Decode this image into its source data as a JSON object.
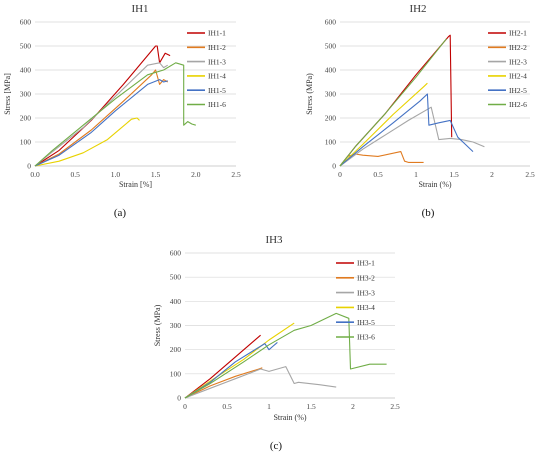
{
  "chart_data": [
    {
      "type": "line",
      "title": "IH1",
      "xlabel": "Strain [%]",
      "ylabel": "Stress [MPa]",
      "xlim": [
        0,
        2.5
      ],
      "ylim": [
        0,
        600
      ],
      "xticks": [
        "0.0",
        "0.5",
        "1.0",
        "1.5",
        "2.0",
        "2.5"
      ],
      "yticks": [
        "0",
        "100",
        "200",
        "300",
        "400",
        "500",
        "600"
      ],
      "grid": "horizontal",
      "legend": "right",
      "panel_label": "(a)",
      "series": [
        {
          "name": "IH1-1",
          "color": "#c00000",
          "x": [
            0,
            0.3,
            0.7,
            1.1,
            1.5,
            1.52,
            1.55,
            1.62,
            1.68
          ],
          "y": [
            0,
            65,
            190,
            340,
            500,
            500,
            430,
            470,
            460
          ]
        },
        {
          "name": "IH1-2",
          "color": "#e07b20",
          "x": [
            0,
            0.3,
            0.7,
            1.1,
            1.45,
            1.5,
            1.55,
            1.6,
            1.65
          ],
          "y": [
            0,
            50,
            150,
            270,
            380,
            400,
            340,
            360,
            350
          ]
        },
        {
          "name": "IH1-3",
          "color": "#a6a6a6",
          "x": [
            0,
            0.2,
            0.6,
            1.0,
            1.4,
            1.55,
            1.6,
            1.65
          ],
          "y": [
            0,
            55,
            160,
            290,
            420,
            430,
            410,
            420
          ]
        },
        {
          "name": "IH1-4",
          "color": "#e8d200",
          "x": [
            0,
            0.3,
            0.6,
            0.9,
            1.2,
            1.27,
            1.3
          ],
          "y": [
            0,
            20,
            55,
            110,
            195,
            200,
            190
          ]
        },
        {
          "name": "IH1-5",
          "color": "#4472c4",
          "x": [
            0,
            0.3,
            0.7,
            1.0,
            1.4,
            1.55,
            1.6,
            1.65
          ],
          "y": [
            0,
            45,
            140,
            230,
            340,
            360,
            350,
            355
          ]
        },
        {
          "name": "IH1-6",
          "color": "#70ad47",
          "x": [
            0,
            0.2,
            0.6,
            1.0,
            1.4,
            1.6,
            1.75,
            1.85,
            1.85,
            1.9,
            1.95,
            2.0
          ],
          "y": [
            0,
            60,
            170,
            280,
            380,
            400,
            430,
            420,
            170,
            185,
            175,
            170
          ]
        }
      ]
    },
    {
      "type": "line",
      "title": "IH2",
      "xlabel": "Strain (%)",
      "ylabel": "Stress (MPa)",
      "xlim": [
        0,
        2.5
      ],
      "ylim": [
        0,
        600
      ],
      "xticks": [
        "0",
        "0.5",
        "1",
        "1.5",
        "2",
        "2.5"
      ],
      "yticks": [
        "0",
        "100",
        "200",
        "300",
        "400",
        "500",
        "600"
      ],
      "grid": "horizontal",
      "legend": "right",
      "panel_label": "(b)",
      "series": [
        {
          "name": "IH2-1",
          "color": "#c00000",
          "x": [
            0,
            0.2,
            0.6,
            1.0,
            1.43,
            1.45,
            1.47
          ],
          "y": [
            0,
            80,
            220,
            380,
            540,
            545,
            120
          ]
        },
        {
          "name": "IH2-2",
          "color": "#e07b20",
          "x": [
            0,
            0.1,
            0.2,
            0.3,
            0.5,
            0.8,
            0.85,
            0.9,
            1.1
          ],
          "y": [
            0,
            40,
            50,
            45,
            40,
            60,
            20,
            15,
            15
          ]
        },
        {
          "name": "IH2-3",
          "color": "#a6a6a6",
          "x": [
            0,
            0.3,
            0.6,
            0.9,
            1.2,
            1.3,
            1.45,
            1.6,
            1.75,
            1.9
          ],
          "y": [
            0,
            70,
            130,
            190,
            245,
            110,
            115,
            110,
            100,
            80
          ]
        },
        {
          "name": "IH2-4",
          "color": "#e8d200",
          "x": [
            0,
            0.3,
            0.7,
            1.1,
            1.15
          ],
          "y": [
            0,
            90,
            215,
            330,
            345
          ]
        },
        {
          "name": "IH2-5",
          "color": "#4472c4",
          "x": [
            0,
            0.3,
            0.7,
            1.05,
            1.15,
            1.17,
            1.3,
            1.45,
            1.55,
            1.65,
            1.75
          ],
          "y": [
            0,
            80,
            180,
            270,
            300,
            170,
            180,
            190,
            120,
            90,
            60
          ]
        },
        {
          "name": "IH2-6",
          "color": "#70ad47",
          "x": [
            0,
            0.2,
            0.6,
            1.0,
            1.4
          ],
          "y": [
            0,
            80,
            220,
            370,
            530
          ]
        }
      ]
    },
    {
      "type": "line",
      "title": "IH3",
      "xlabel": "Strain (%)",
      "ylabel": "Stress (MPa)",
      "xlim": [
        0,
        2.5
      ],
      "ylim": [
        0,
        600
      ],
      "xticks": [
        "0",
        "0.5",
        "1",
        "1.5",
        "2",
        "2.5"
      ],
      "yticks": [
        "0",
        "100",
        "200",
        "300",
        "400",
        "500",
        "600"
      ],
      "grid": "horizontal",
      "legend": "right",
      "panel_label": "(c)",
      "series": [
        {
          "name": "IH3-1",
          "color": "#c00000",
          "x": [
            0,
            0.3,
            0.6,
            0.9
          ],
          "y": [
            0,
            80,
            170,
            260
          ]
        },
        {
          "name": "IH3-2",
          "color": "#e07b20",
          "x": [
            0,
            0.3,
            0.6,
            0.88,
            0.92
          ],
          "y": [
            0,
            50,
            90,
            120,
            125
          ]
        },
        {
          "name": "IH3-3",
          "color": "#a6a6a6",
          "x": [
            0,
            0.3,
            0.6,
            0.9,
            1.0,
            1.2,
            1.3,
            1.35,
            1.6,
            1.8
          ],
          "y": [
            0,
            40,
            80,
            120,
            110,
            130,
            60,
            65,
            55,
            45
          ]
        },
        {
          "name": "IH3-4",
          "color": "#e8d200",
          "x": [
            0,
            0.3,
            0.7,
            1.0,
            1.3
          ],
          "y": [
            0,
            70,
            160,
            240,
            310
          ]
        },
        {
          "name": "IH3-5",
          "color": "#4472c4",
          "x": [
            0,
            0.3,
            0.6,
            0.95,
            1.0,
            1.05,
            1.1
          ],
          "y": [
            0,
            65,
            150,
            225,
            200,
            215,
            230
          ]
        },
        {
          "name": "IH3-6",
          "color": "#70ad47",
          "x": [
            0,
            0.3,
            0.7,
            1.0,
            1.3,
            1.5,
            1.8,
            1.95,
            1.97,
            2.2,
            2.4
          ],
          "y": [
            0,
            60,
            150,
            220,
            280,
            300,
            350,
            330,
            120,
            140,
            140
          ]
        }
      ]
    }
  ]
}
